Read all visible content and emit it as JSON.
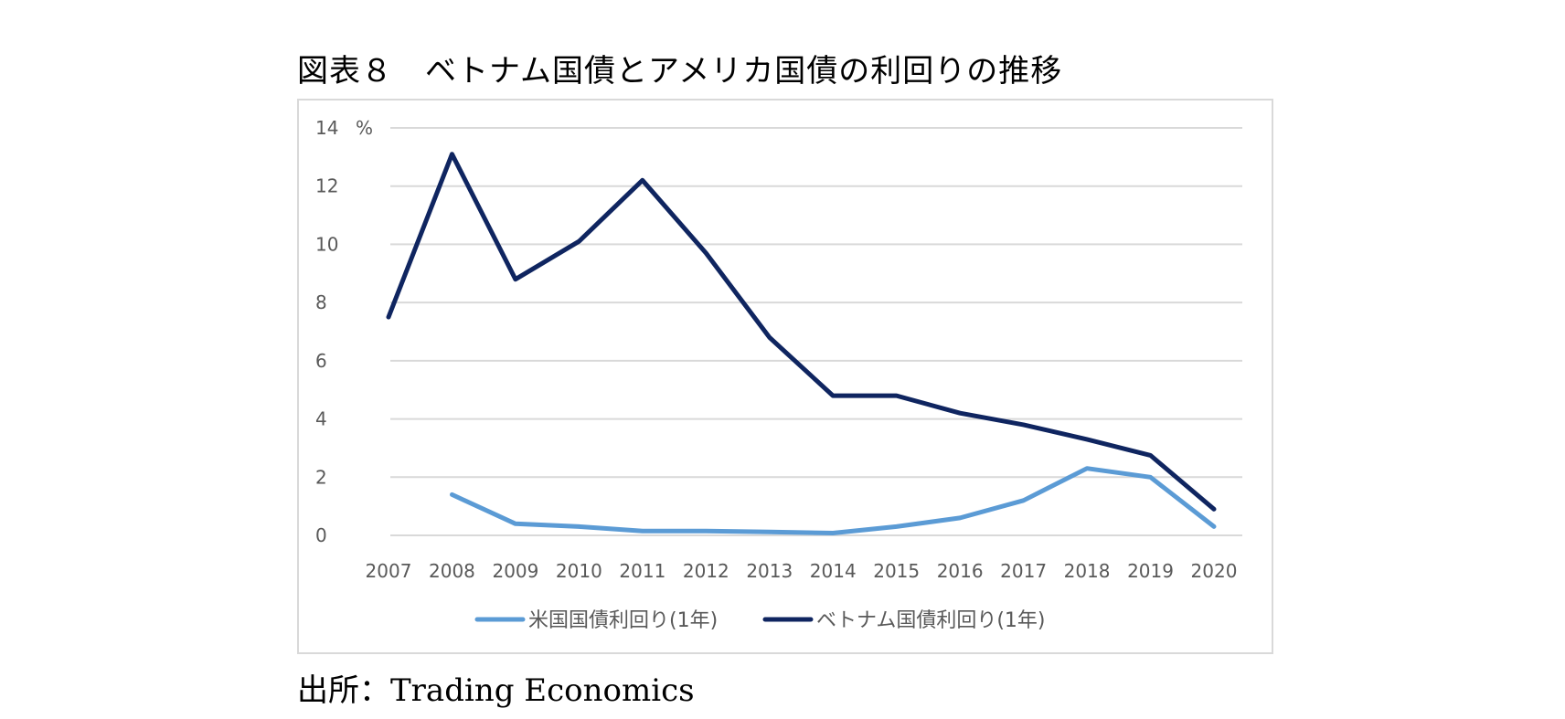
{
  "figure": {
    "title": "図表８　ベトナム国債とアメリカ国債の利回りの推移",
    "source": "出所：Trading Economics"
  },
  "chart_data": {
    "type": "line",
    "title": "",
    "xlabel": "",
    "ylabel": "%",
    "x": [
      "2007",
      "2008",
      "2009",
      "2010",
      "2011",
      "2012",
      "2013",
      "2014",
      "2015",
      "2016",
      "2017",
      "2018",
      "2019",
      "2020"
    ],
    "ylim": [
      0,
      14
    ],
    "yticks": [
      0,
      2,
      4,
      6,
      8,
      10,
      12,
      14
    ],
    "grid": true,
    "legend_position": "bottom",
    "series": [
      {
        "name": "米国国債利回り(1年)",
        "color": "#5b9bd5",
        "values": [
          null,
          1.4,
          0.4,
          0.3,
          0.15,
          0.15,
          0.12,
          0.08,
          0.3,
          0.6,
          1.2,
          2.3,
          2.0,
          0.3
        ]
      },
      {
        "name": "ベトナム国債利回り(1年)",
        "color": "#0f2560",
        "values": [
          7.5,
          13.1,
          8.8,
          10.1,
          12.2,
          9.7,
          6.8,
          4.8,
          4.8,
          4.2,
          3.8,
          3.3,
          2.75,
          0.9
        ]
      }
    ]
  }
}
